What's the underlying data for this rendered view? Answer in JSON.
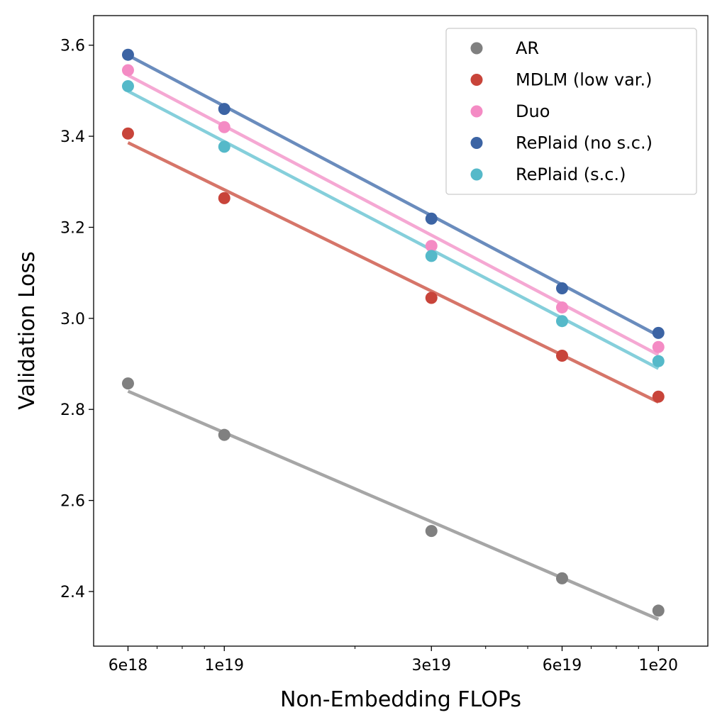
{
  "chart_data": {
    "type": "scatter",
    "xscale": "log",
    "xlabel": "Non-Embedding FLOPs",
    "ylabel": "Validation Loss",
    "x": [
      6e+18,
      1e+19,
      3e+19,
      6e+19,
      1e+20
    ],
    "xticks": [
      {
        "value": 6e+18,
        "label": "6e18"
      },
      {
        "value": 1e+19,
        "label": "1e19"
      },
      {
        "value": 3e+19,
        "label": "3e19"
      },
      {
        "value": 6e+19,
        "label": "6e19"
      },
      {
        "value": 1e+20,
        "label": "1e20"
      }
    ],
    "xlim": [
      5e+18,
      1.3e+20
    ],
    "ylim": [
      2.28,
      3.665
    ],
    "yticks": [
      "2.4",
      "2.6",
      "2.8",
      "3.0",
      "3.2",
      "3.4",
      "3.6"
    ],
    "grid": false,
    "legend_position": "top-right",
    "series": [
      {
        "name": "AR",
        "color": "#808080",
        "fit_color": "#a6a6a6",
        "values": [
          2.857,
          2.744,
          2.533,
          2.429,
          2.358
        ],
        "fit": [
          2.84,
          2.339
        ]
      },
      {
        "name": "MDLM (low var.)",
        "color": "#c8443a",
        "fit_color": "#d67569",
        "values": [
          3.406,
          3.264,
          3.045,
          2.918,
          2.828
        ],
        "fit": [
          3.386,
          2.816
        ]
      },
      {
        "name": "Duo",
        "color": "#f48bc4",
        "fit_color": "#f5a8d3",
        "values": [
          3.545,
          3.42,
          3.159,
          3.024,
          2.937
        ],
        "fit": [
          3.534,
          2.92
        ]
      },
      {
        "name": "RePlaid (no s.c.)",
        "color": "#3c64a4",
        "fit_color": "#6a8cbd",
        "values": [
          3.579,
          3.46,
          3.219,
          3.066,
          2.968
        ],
        "fit": [
          3.578,
          2.962
        ]
      },
      {
        "name": "RePlaid (s.c.)",
        "color": "#55b9c9",
        "fit_color": "#85cfdb",
        "values": [
          3.51,
          3.377,
          3.137,
          2.994,
          2.906
        ],
        "fit": [
          3.499,
          2.89
        ]
      }
    ]
  }
}
